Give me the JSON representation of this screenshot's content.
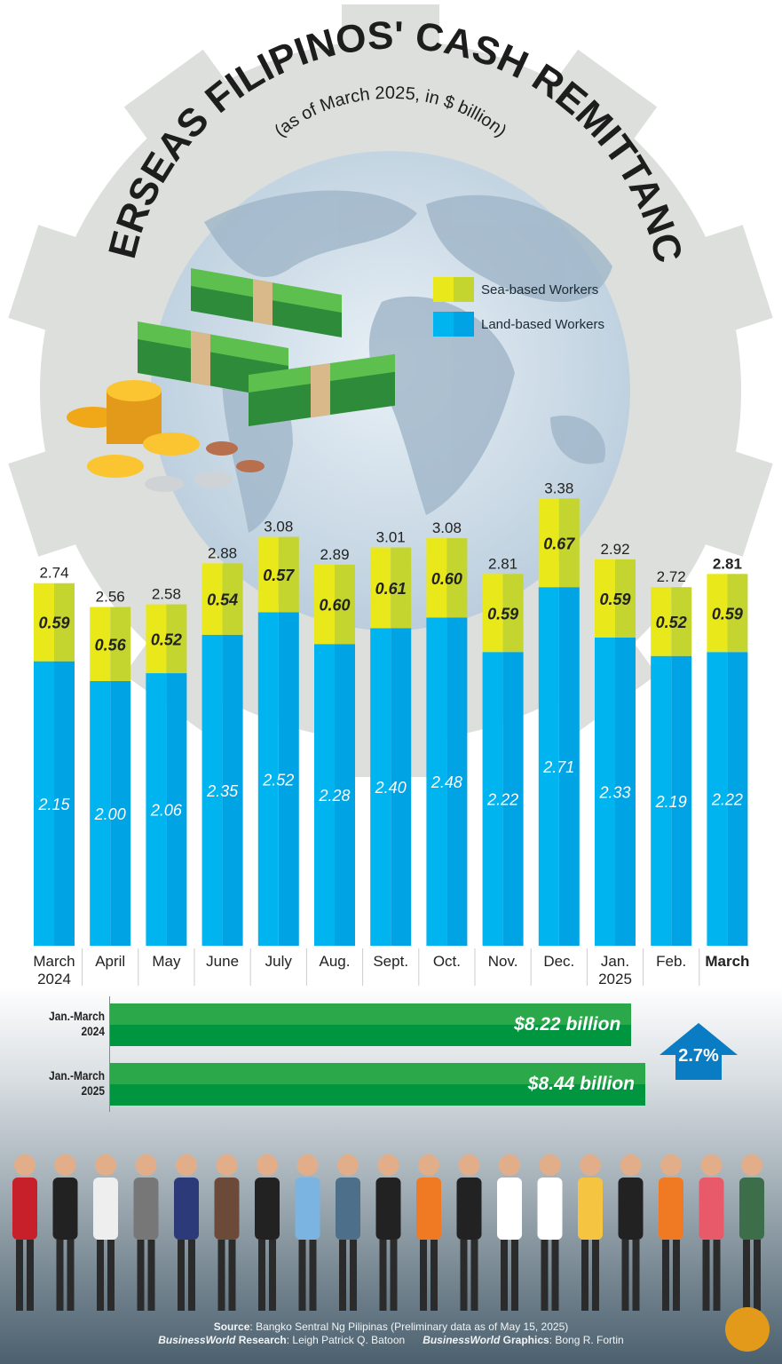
{
  "title": "OVERSEAS FILIPINOS' CASH REMITTANCES",
  "subtitle": "(as of March 2025, in $ billion)",
  "legend": [
    {
      "label": "Sea-based Workers",
      "color": "#d6e21a"
    },
    {
      "label": "Land-based Workers",
      "color": "#00aeef"
    }
  ],
  "chart_data": {
    "type": "bar",
    "stacked": true,
    "categories": [
      "March 2024",
      "April",
      "May",
      "June",
      "July",
      "Aug.",
      "Sept.",
      "Oct.",
      "Nov.",
      "Dec.",
      "Jan. 2025",
      "Feb.",
      "March"
    ],
    "series": [
      {
        "name": "Land-based Workers",
        "values": [
          2.15,
          2.0,
          2.06,
          2.35,
          2.52,
          2.28,
          2.4,
          2.48,
          2.22,
          2.71,
          2.33,
          2.19,
          2.22
        ]
      },
      {
        "name": "Sea-based Workers",
        "values": [
          0.59,
          0.56,
          0.52,
          0.54,
          0.57,
          0.6,
          0.61,
          0.6,
          0.59,
          0.67,
          0.59,
          0.52,
          0.59
        ]
      }
    ],
    "totals": [
      2.74,
      2.56,
      2.58,
      2.88,
      3.08,
      2.89,
      3.01,
      3.08,
      2.81,
      3.38,
      2.92,
      2.72,
      2.81
    ],
    "land_labels": [
      "2.15",
      "2.00",
      "2.06",
      "2.35",
      "2.52",
      "2.28",
      "2.40",
      "2.48",
      "2.22",
      "2.71",
      "2.33",
      "2.19",
      "2.22"
    ],
    "sea_labels": [
      "0.59",
      "0.56",
      "0.52",
      "0.54",
      "0.57",
      "0.60",
      "0.61",
      "0.60",
      "0.59",
      "0.67",
      "0.59",
      "0.52",
      "0.59"
    ],
    "total_labels": [
      "2.74",
      "2.56",
      "2.58",
      "2.88",
      "3.08",
      "2.89",
      "3.01",
      "3.08",
      "2.81",
      "3.38",
      "2.92",
      "2.72",
      "2.81"
    ],
    "xlabel": "",
    "ylabel": "",
    "ylim": [
      0,
      3.5
    ],
    "grid": false,
    "colors": {
      "land": "#00aeef",
      "sea": "#d6e21a"
    }
  },
  "ytd": {
    "rows": [
      {
        "label_line1": "Jan.-March",
        "label_line2": "2024",
        "value": 8.22,
        "value_label": "$8.22 billion"
      },
      {
        "label_line1": "Jan.-March",
        "label_line2": "2025",
        "value": 8.44,
        "value_label": "$8.44 billion"
      }
    ],
    "change": "2.7%",
    "change_direction": "up"
  },
  "footer": {
    "source_label": "Source",
    "source_text": ": Bangko Sentral Ng Pilipinas (Preliminary data as of May 15, 2025)",
    "research_brand": "BusinessWorld",
    "research_label": " Research",
    "research_name": ": Leigh Patrick Q. Batoon",
    "graphics_brand": "BusinessWorld",
    "graphics_label": " Graphics",
    "graphics_name": ": Bong R. Fortin",
    "logo": "BW"
  }
}
